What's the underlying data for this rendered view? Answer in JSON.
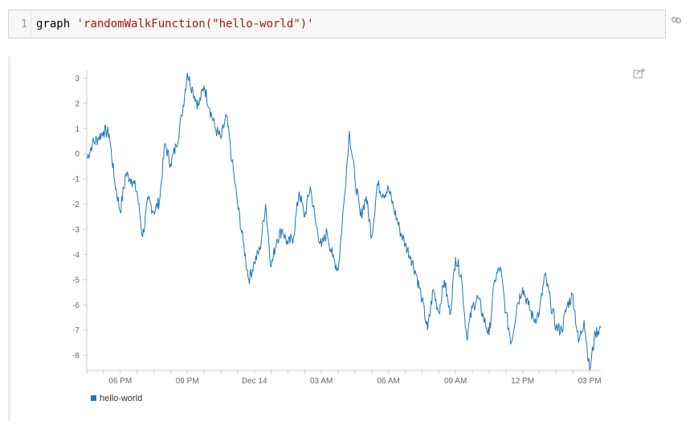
{
  "cell": {
    "line_number": "1",
    "code_keyword": "graph",
    "code_string": "'randomWalkFunction(\"hello-world\")'"
  },
  "icons": {
    "link": "link-icon",
    "share": "share-icon"
  },
  "colors": {
    "series": "#1f77b4"
  },
  "chart_data": {
    "type": "line",
    "title": "",
    "xlabel": "",
    "ylabel": "",
    "x_ticks": [
      "06 PM",
      "09 PM",
      "Dec 14",
      "03 AM",
      "06 AM",
      "09 AM",
      "12 PM",
      "03 PM"
    ],
    "y_ticks": [
      3,
      2,
      1,
      0,
      -1,
      -2,
      -3,
      -4,
      -5,
      -6,
      -7,
      -8
    ],
    "ylim": [
      -8.6,
      3.3
    ],
    "grid": false,
    "legend": "bottom-left",
    "series": [
      {
        "name": "hello-world",
        "x_hours_from_1630": [
          0,
          0.25,
          0.5,
          0.75,
          1.0,
          1.25,
          1.5,
          1.75,
          2.0,
          2.25,
          2.5,
          2.75,
          3.0,
          3.25,
          3.5,
          3.75,
          4.0,
          4.25,
          4.5,
          4.75,
          5.0,
          5.25,
          5.5,
          5.75,
          6.0,
          6.25,
          6.5,
          6.75,
          7.0,
          7.25,
          7.5,
          7.75,
          8.0,
          8.25,
          8.5,
          8.75,
          9.0,
          9.25,
          9.5,
          9.75,
          10.0,
          10.25,
          10.5,
          10.75,
          11.0,
          11.25,
          11.5,
          11.75,
          12.0,
          12.25,
          12.5,
          12.75,
          13.0,
          13.25,
          13.5,
          13.75,
          14.0,
          14.25,
          14.5,
          14.75,
          15.0,
          15.25,
          15.5,
          15.75,
          16.0,
          16.25,
          16.5,
          16.75,
          17.0,
          17.25,
          17.5,
          17.75,
          18.0,
          18.25,
          18.5,
          18.75,
          19.0,
          19.25,
          19.5,
          19.75,
          20.0,
          20.25,
          20.5,
          20.75,
          21.0,
          21.25,
          21.5,
          21.75,
          22.0,
          22.25,
          22.5,
          22.75,
          23.0
        ],
        "values": [
          -0.2,
          0.4,
          0.6,
          0.9,
          0.8,
          -1.1,
          -2.3,
          -0.8,
          -1.0,
          -1.5,
          -3.3,
          -1.8,
          -2.3,
          -1.9,
          0.4,
          -0.4,
          0.3,
          1.5,
          3.2,
          2.5,
          1.9,
          2.7,
          1.8,
          1.0,
          0.6,
          1.5,
          -0.3,
          -2.0,
          -3.5,
          -5.0,
          -4.3,
          -3.8,
          -2.0,
          -4.5,
          -3.4,
          -3.0,
          -3.6,
          -3.3,
          -1.5,
          -2.5,
          -1.3,
          -2.8,
          -3.7,
          -3.1,
          -4.1,
          -4.6,
          -2.0,
          0.9,
          -1.0,
          -2.5,
          -1.7,
          -3.3,
          -1.2,
          -1.6,
          -1.4,
          -2.2,
          -3.0,
          -3.6,
          -4.1,
          -4.8,
          -5.8,
          -7.0,
          -5.4,
          -6.3,
          -5.0,
          -6.4,
          -4.1,
          -4.8,
          -7.3,
          -6.1,
          -5.7,
          -6.5,
          -7.2,
          -5.0,
          -4.5,
          -6.3,
          -7.5,
          -6.0,
          -5.3,
          -6.0,
          -6.6,
          -6.3,
          -4.8,
          -5.9,
          -6.9,
          -7.0,
          -6.0,
          -5.6,
          -7.5,
          -6.6,
          -8.6,
          -7.1,
          -6.9
        ]
      }
    ]
  },
  "legend": {
    "label": "hello-world"
  }
}
